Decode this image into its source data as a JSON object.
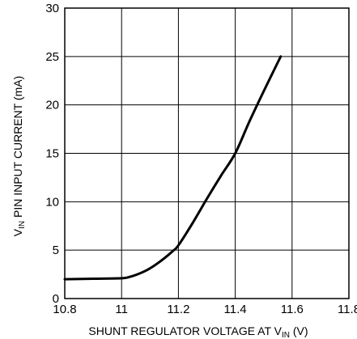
{
  "chart_data": {
    "type": "line",
    "title": "",
    "xlabel": {
      "prefix": "SHUNT REGULATOR VOLTAGE AT V",
      "subscript": "IN",
      "suffix": " (V)"
    },
    "ylabel": {
      "prefix": "V",
      "subscript": "IN",
      "suffix": " PIN INPUT CURRENT (mA)"
    },
    "xlim": [
      10.8,
      11.8
    ],
    "ylim": [
      0,
      30
    ],
    "x_ticks": [
      10.8,
      11,
      11.2,
      11.4,
      11.6,
      11.8
    ],
    "x_tick_labels": [
      "10.8",
      "11",
      "11.2",
      "11.4",
      "11.6",
      "11.8"
    ],
    "y_ticks": [
      0,
      5,
      10,
      15,
      20,
      25,
      30
    ],
    "y_tick_labels": [
      "0",
      "5",
      "10",
      "15",
      "20",
      "25",
      "30"
    ],
    "grid": true,
    "series": [
      {
        "x": [
          10.8,
          10.9,
          11.0,
          11.03,
          11.06,
          11.09,
          11.12,
          11.15,
          11.18,
          11.2,
          11.25,
          11.3,
          11.35,
          11.4,
          11.45,
          11.5,
          11.56
        ],
        "y": [
          2.0,
          2.05,
          2.1,
          2.25,
          2.55,
          2.95,
          3.5,
          4.15,
          4.9,
          5.5,
          7.8,
          10.3,
          12.7,
          15.0,
          18.3,
          21.4,
          25.0
        ]
      }
    ],
    "colors": {
      "line": "#000000",
      "grid": "#000000"
    }
  }
}
